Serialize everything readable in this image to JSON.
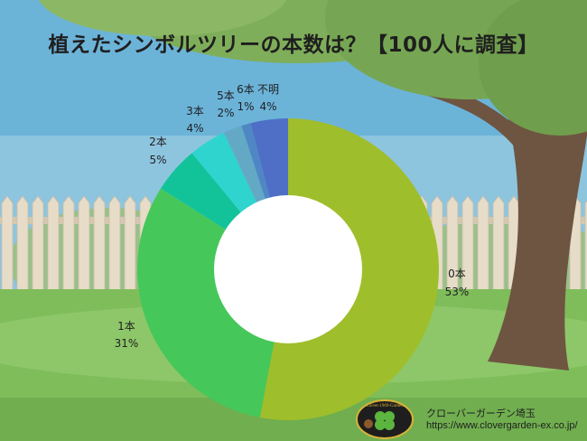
{
  "title": "植えたシンボルツリーの本数は？【100人に調査】",
  "colors": {
    "sky": "#6cb3d8",
    "grass": "#7fbd5b",
    "fence": "#e6dcc8",
    "trunk": "#6e5541",
    "foliage": "#7fae5a"
  },
  "chart_data": {
    "type": "pie",
    "donut": true,
    "title": "植えたシンボルツリーの本数は？【100人に調査】",
    "categories": [
      "0本",
      "1本",
      "2本",
      "3本",
      "5本",
      "6本",
      "不明"
    ],
    "values": [
      53,
      31,
      5,
      4,
      2,
      1,
      4
    ],
    "labels": [
      "53%",
      "31%",
      "5%",
      "4%",
      "2%",
      "1%",
      "4%"
    ],
    "colors": [
      "#9fbe2b",
      "#46c75a",
      "#12c39a",
      "#2fd4cf",
      "#63a9c6",
      "#4f86c4",
      "#4f6fc7"
    ],
    "order": "clockwise from top"
  },
  "footer": {
    "company": "クローバーガーデン埼玉",
    "url": "https://www.clovergarden-ex.co.jp/",
    "logo_text": "Clover-1969-Garden"
  }
}
